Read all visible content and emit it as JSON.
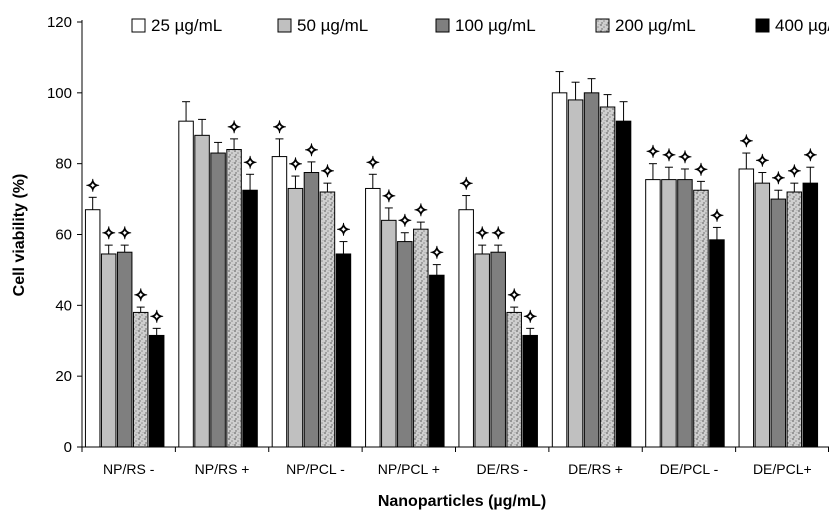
{
  "chart_data": {
    "type": "bar",
    "title": "",
    "xlabel": "Nanoparticles (µg/mL)",
    "ylabel": "Cell viability (%)",
    "ylim": [
      0,
      120
    ],
    "yticks": [
      0,
      20,
      40,
      60,
      80,
      100,
      120
    ],
    "legend_position": "top",
    "categories": [
      "NP/RS -",
      "NP/RS +",
      "NP/PCL -",
      "NP/PCL +",
      "DE/RS -",
      "DE/RS +",
      "DE/PCL -",
      "DE/PCL+"
    ],
    "series": [
      {
        "name": "25 µg/mL",
        "color": "#ffffff",
        "pattern": "solid",
        "values": [
          67,
          92,
          82,
          73,
          67,
          100,
          75.5,
          78.5
        ],
        "errors": [
          3.5,
          5.5,
          5.0,
          4.0,
          4.0,
          6.0,
          4.5,
          4.5
        ],
        "significant": [
          true,
          false,
          true,
          true,
          true,
          false,
          true,
          true
        ]
      },
      {
        "name": "50 µg/mL",
        "color": "#c0c0c0",
        "pattern": "solid",
        "values": [
          54.5,
          88,
          73,
          64,
          54.5,
          98,
          75.5,
          74.5
        ],
        "errors": [
          2.5,
          4.5,
          3.5,
          3.5,
          2.5,
          5.0,
          3.5,
          3.0
        ],
        "significant": [
          true,
          false,
          true,
          true,
          true,
          false,
          true,
          true
        ]
      },
      {
        "name": "100 µg/mL",
        "color": "#7f7f7f",
        "pattern": "solid",
        "values": [
          55,
          83,
          77.5,
          58,
          55,
          100,
          75.5,
          70
        ],
        "errors": [
          2.0,
          3.0,
          3.0,
          2.5,
          2.0,
          4.0,
          3.0,
          2.5
        ],
        "significant": [
          true,
          false,
          true,
          true,
          true,
          false,
          true,
          true
        ]
      },
      {
        "name": "200 µg/mL",
        "color": "#bdbdbd",
        "pattern": "speckled",
        "values": [
          38,
          84,
          72,
          61.5,
          38,
          96,
          72.5,
          72
        ],
        "errors": [
          1.5,
          3.0,
          2.5,
          2.0,
          1.5,
          3.5,
          2.5,
          2.5
        ],
        "significant": [
          true,
          true,
          true,
          true,
          true,
          false,
          true,
          true
        ]
      },
      {
        "name": "400 µg/mL",
        "color": "#000000",
        "pattern": "solid",
        "values": [
          31.5,
          72.5,
          54.5,
          48.5,
          31.5,
          92,
          58.5,
          74.5
        ],
        "errors": [
          2.0,
          4.5,
          3.5,
          3.0,
          2.0,
          5.5,
          3.5,
          4.5
        ],
        "significant": [
          true,
          true,
          true,
          true,
          true,
          false,
          true,
          true
        ]
      }
    ],
    "significance_marker": "✧"
  }
}
